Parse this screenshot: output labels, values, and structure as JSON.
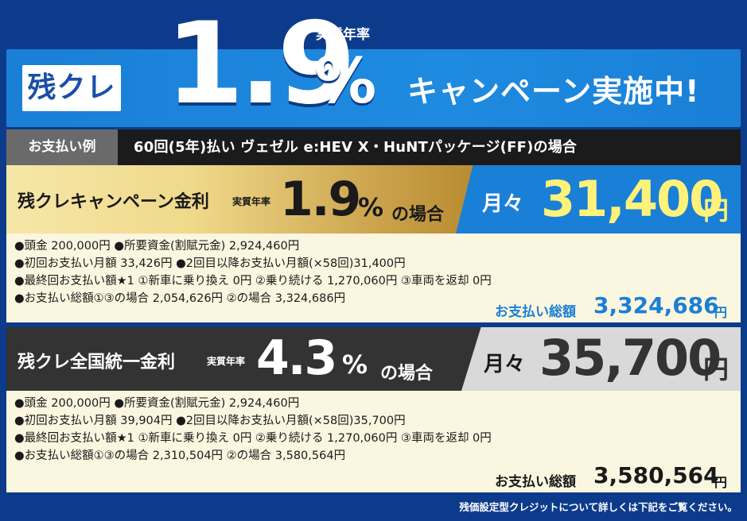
{
  "banner": {
    "badge": "残クレ",
    "rate_number": "1.9",
    "rate_unit": "%",
    "rate_caption": "実質年率",
    "campaign_text": "キャンペーン実施中!"
  },
  "example": {
    "label": "お支払い例",
    "text": "60回(5年)払い ヴェゼル e:HEV X・HuNTパッケージ(FF)の場合"
  },
  "campaign_plan": {
    "title": "残クレキャンペーン金利",
    "rate_caption": "実質年率",
    "rate": "1.9",
    "rate_unit": "%",
    "case_suffix": "の場合",
    "monthly_label": "月々",
    "monthly_amount": "31,400",
    "monthly_unit": "円",
    "details": [
      "●頭金 200,000円 ●所要資金(割賦元金) 2,924,460円",
      "●初回お支払い月額 33,426円 ●2回目以降お支払い月額(×58回)31,400円",
      "●最終回お支払い額★1 ①新車に乗り換え 0円 ②乗り続ける 1,270,060円 ③車両を返却 0円",
      "●お支払い総額①③の場合 2,054,626円 ②の場合 3,324,686円"
    ],
    "total_label": "お支払い総額",
    "total_amount": "3,324,686",
    "total_unit": "円"
  },
  "national_plan": {
    "title": "残クレ全国統一金利",
    "rate_caption": "実質年率",
    "rate": "4.3",
    "rate_unit": "%",
    "case_suffix": "の場合",
    "monthly_label": "月々",
    "monthly_amount": "35,700",
    "monthly_unit": "円",
    "details": [
      "●頭金 200,000円 ●所要資金(割賦元金) 2,924,460円",
      "●初回お支払い月額 39,904円 ●2回目以降お支払い月額(×58回)35,700円",
      "●最終回お支払い額★1 ①新車に乗り換え 0円 ②乗り続ける 1,270,060円 ③車両を返却 0円",
      "●お支払い総額①③の場合 2,310,504円 ②の場合 3,580,564円"
    ],
    "total_label": "お支払い総額",
    "total_amount": "3,580,564",
    "total_unit": "円"
  },
  "footer_note": "残価設定型クレジットについて詳しくは下記をご覧ください。",
  "colors": {
    "background": "#0d3b8c",
    "banner_blue": "#1a7fd6",
    "gold": "#efd98a",
    "dark_gray": "#333333",
    "light_gray": "#d9d9d9",
    "cream": "#fbf6df",
    "campaign_yellow": "#fff27a"
  }
}
